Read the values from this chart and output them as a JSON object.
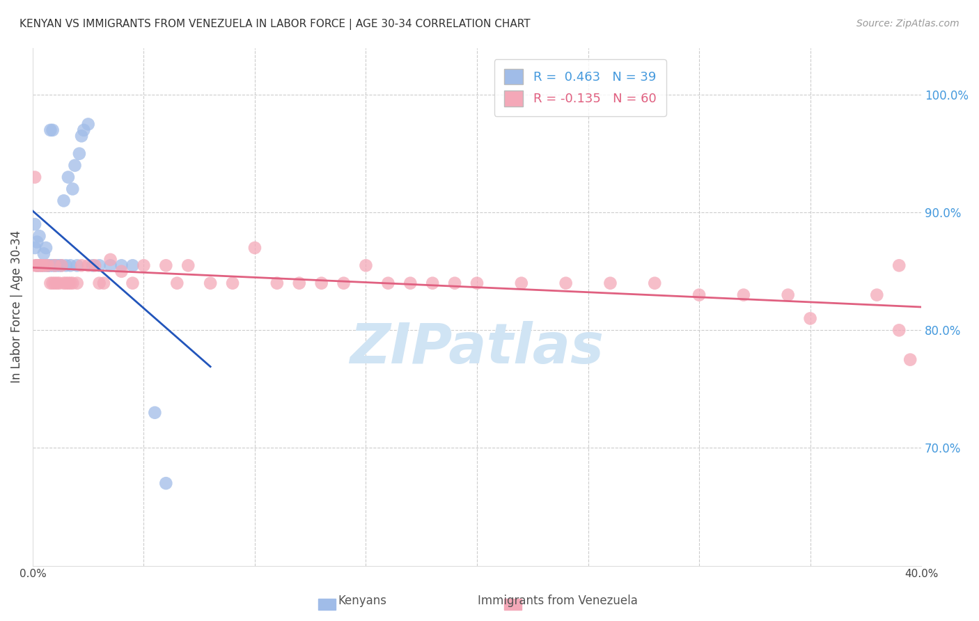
{
  "title": "KENYAN VS IMMIGRANTS FROM VENEZUELA IN LABOR FORCE | AGE 30-34 CORRELATION CHART",
  "source": "Source: ZipAtlas.com",
  "ylabel_left": "In Labor Force | Age 30-34",
  "xlim": [
    0.0,
    0.4
  ],
  "ylim": [
    0.6,
    1.04
  ],
  "kenyan_R": 0.463,
  "kenyan_N": 39,
  "venezuela_R": -0.135,
  "venezuela_N": 60,
  "kenyan_color": "#a0bce8",
  "venezuela_color": "#f4a8b8",
  "kenyan_line_color": "#2255bb",
  "venezuela_line_color": "#e06080",
  "background_color": "#ffffff",
  "grid_color": "#cccccc",
  "watermark_text": "ZIPatlas",
  "watermark_color": "#d0e4f4",
  "legend_box_kenyan": "#a0bce8",
  "legend_box_venezuela": "#f4a8b8",
  "kenyan_x": [
    0.001,
    0.001,
    0.002,
    0.002,
    0.003,
    0.003,
    0.004,
    0.005,
    0.005,
    0.006,
    0.006,
    0.007,
    0.007,
    0.008,
    0.008,
    0.009,
    0.009,
    0.01,
    0.011,
    0.012,
    0.013,
    0.014,
    0.015,
    0.016,
    0.017,
    0.018,
    0.019,
    0.02,
    0.021,
    0.022,
    0.023,
    0.025,
    0.027,
    0.03,
    0.035,
    0.04,
    0.045,
    0.055,
    0.06
  ],
  "kenyan_y": [
    0.87,
    0.89,
    0.855,
    0.875,
    0.855,
    0.88,
    0.855,
    0.855,
    0.865,
    0.855,
    0.87,
    0.855,
    0.855,
    0.855,
    0.97,
    0.855,
    0.97,
    0.855,
    0.855,
    0.855,
    0.855,
    0.91,
    0.855,
    0.93,
    0.855,
    0.92,
    0.94,
    0.855,
    0.95,
    0.965,
    0.97,
    0.975,
    0.855,
    0.855,
    0.855,
    0.855,
    0.855,
    0.73,
    0.67
  ],
  "venezuela_x": [
    0.001,
    0.001,
    0.002,
    0.002,
    0.003,
    0.004,
    0.004,
    0.005,
    0.006,
    0.007,
    0.008,
    0.009,
    0.01,
    0.01,
    0.011,
    0.012,
    0.013,
    0.014,
    0.015,
    0.016,
    0.017,
    0.018,
    0.02,
    0.022,
    0.025,
    0.028,
    0.03,
    0.032,
    0.035,
    0.04,
    0.045,
    0.05,
    0.06,
    0.065,
    0.07,
    0.08,
    0.09,
    0.1,
    0.11,
    0.12,
    0.13,
    0.14,
    0.15,
    0.16,
    0.17,
    0.18,
    0.19,
    0.2,
    0.22,
    0.24,
    0.26,
    0.28,
    0.3,
    0.32,
    0.34,
    0.35,
    0.38,
    0.39,
    0.395,
    0.39
  ],
  "venezuela_y": [
    0.855,
    0.93,
    0.855,
    0.855,
    0.855,
    0.855,
    0.855,
    0.855,
    0.855,
    0.855,
    0.84,
    0.84,
    0.855,
    0.84,
    0.84,
    0.84,
    0.855,
    0.84,
    0.84,
    0.84,
    0.84,
    0.84,
    0.84,
    0.855,
    0.855,
    0.855,
    0.84,
    0.84,
    0.86,
    0.85,
    0.84,
    0.855,
    0.855,
    0.84,
    0.855,
    0.84,
    0.84,
    0.87,
    0.84,
    0.84,
    0.84,
    0.84,
    0.855,
    0.84,
    0.84,
    0.84,
    0.84,
    0.84,
    0.84,
    0.84,
    0.84,
    0.84,
    0.83,
    0.83,
    0.83,
    0.81,
    0.83,
    0.8,
    0.775,
    0.855
  ]
}
